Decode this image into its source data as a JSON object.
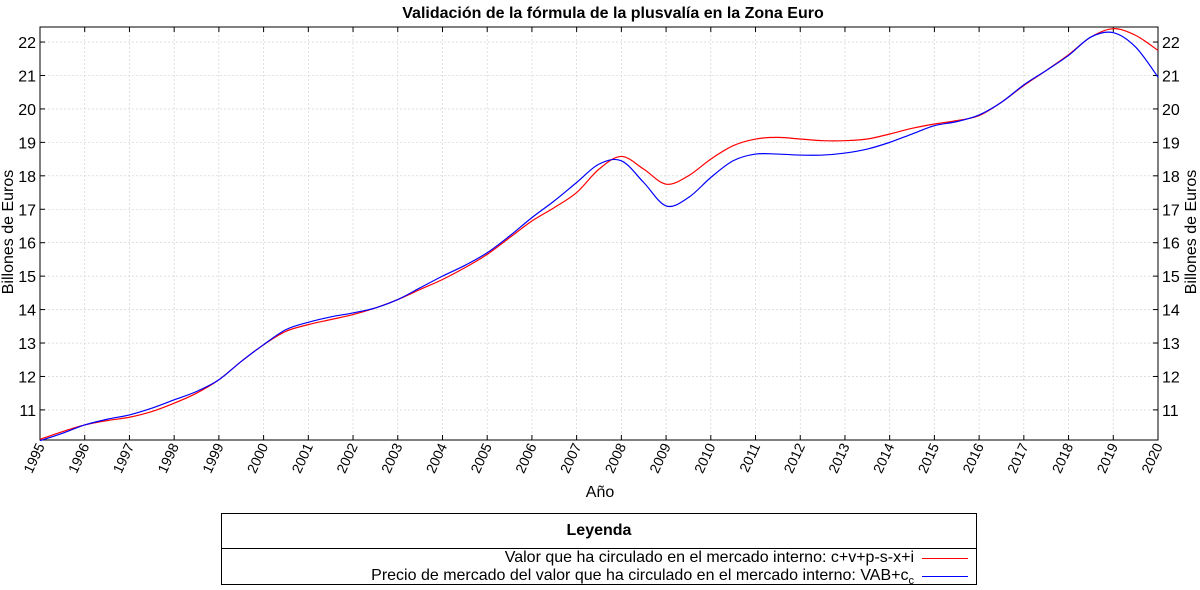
{
  "chart_data": {
    "type": "line",
    "title": "Validación de la fórmula de la plusvalía en la Zona Euro",
    "xlabel": "Año",
    "ylabel_left": "Billones de Euros",
    "ylabel_right": "Billones de Euros",
    "xlim": [
      1995,
      2020
    ],
    "ylim": [
      10.1,
      22.45
    ],
    "x_ticks": [
      1995,
      1996,
      1997,
      1998,
      1999,
      2000,
      2001,
      2002,
      2003,
      2004,
      2005,
      2006,
      2007,
      2008,
      2009,
      2010,
      2011,
      2012,
      2013,
      2014,
      2015,
      2016,
      2017,
      2018,
      2019,
      2020
    ],
    "y_ticks": [
      11,
      12,
      13,
      14,
      15,
      16,
      17,
      18,
      19,
      20,
      21,
      22
    ],
    "grid": true,
    "legend_title": "Leyenda",
    "x": [
      1995,
      1995.5,
      1996,
      1996.5,
      1997,
      1997.5,
      1998,
      1998.5,
      1999,
      1999.5,
      2000,
      2000.5,
      2001,
      2001.5,
      2002,
      2002.5,
      2003,
      2003.5,
      2004,
      2004.5,
      2005,
      2005.5,
      2006,
      2006.5,
      2007,
      2007.5,
      2008,
      2008.5,
      2009,
      2009.5,
      2010,
      2010.5,
      2011,
      2011.5,
      2012,
      2012.5,
      2013,
      2013.5,
      2014,
      2014.5,
      2015,
      2015.5,
      2016,
      2016.5,
      2017,
      2017.5,
      2018,
      2018.5,
      2019,
      2019.5,
      2020
    ],
    "series": [
      {
        "name": "Valor que ha circulado en el mercado interno: c+v+p-s-x+i",
        "color": "#ff0000",
        "values": [
          10.12,
          10.35,
          10.55,
          10.68,
          10.78,
          10.95,
          11.2,
          11.5,
          11.9,
          12.45,
          12.95,
          13.35,
          13.55,
          13.7,
          13.85,
          14.05,
          14.3,
          14.6,
          14.9,
          15.25,
          15.65,
          16.15,
          16.65,
          17.05,
          17.5,
          18.2,
          18.58,
          18.2,
          17.75,
          18.0,
          18.5,
          18.9,
          19.1,
          19.15,
          19.1,
          19.05,
          19.05,
          19.1,
          19.25,
          19.42,
          19.55,
          19.65,
          19.8,
          20.2,
          20.7,
          21.15,
          21.62,
          22.15,
          22.4,
          22.2,
          21.75
        ]
      },
      {
        "name": "Precio de mercado del valor que ha circulado en el mercado interno: VAB+c",
        "name_sub": "c",
        "color": "#0000ff",
        "values": [
          10.08,
          10.3,
          10.55,
          10.72,
          10.85,
          11.05,
          11.3,
          11.55,
          11.9,
          12.45,
          12.95,
          13.4,
          13.62,
          13.78,
          13.9,
          14.05,
          14.3,
          14.65,
          15.0,
          15.32,
          15.7,
          16.2,
          16.75,
          17.25,
          17.8,
          18.35,
          18.45,
          17.8,
          17.1,
          17.35,
          17.95,
          18.45,
          18.65,
          18.65,
          18.62,
          18.62,
          18.68,
          18.8,
          19.0,
          19.25,
          19.5,
          19.62,
          19.82,
          20.2,
          20.72,
          21.15,
          21.6,
          22.15,
          22.28,
          21.85,
          20.95
        ]
      }
    ]
  }
}
